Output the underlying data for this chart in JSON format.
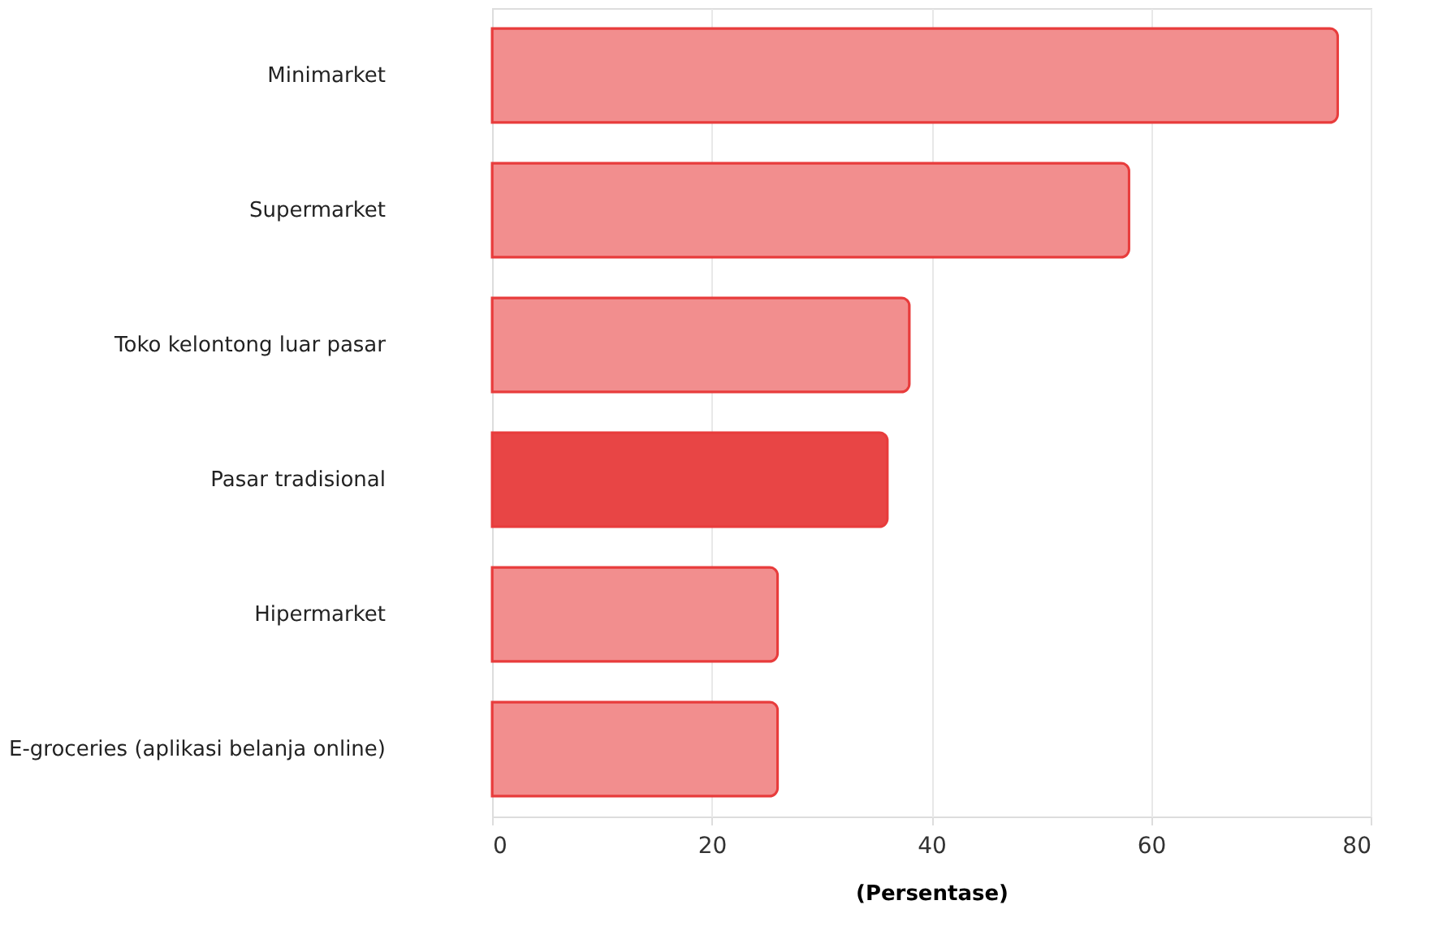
{
  "chart_data": {
    "type": "bar",
    "orientation": "horizontal",
    "xlabel": "(Persentase)",
    "categories": [
      "Minimarket",
      "Supermarket",
      "Toko kelontong luar pasar",
      "Pasar tradisional",
      "Hipermarket",
      "E-groceries (aplikasi belanja online)"
    ],
    "values": [
      77,
      58,
      38,
      36,
      26,
      26
    ],
    "colors": [
      "#f28e8e",
      "#f28e8e",
      "#f28e8e",
      "#e84545",
      "#f28e8e",
      "#f28e8e"
    ],
    "xlim": [
      0,
      80
    ],
    "xticks": [
      0,
      20,
      40,
      60,
      80
    ],
    "grid": "x"
  }
}
